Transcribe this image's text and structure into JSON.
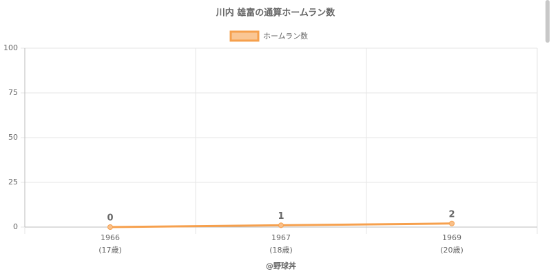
{
  "chart_data": {
    "type": "line",
    "title": "川内 雄富の通算ホームラン数",
    "categories": [
      "1966",
      "1967",
      "1969"
    ],
    "age_labels": [
      "(17歳)",
      "(18歳)",
      "(20歳)"
    ],
    "series": [
      {
        "name": "ホームラン数",
        "color": "#f6a04d",
        "values": [
          0,
          1,
          2
        ]
      }
    ],
    "ylim": [
      0,
      100
    ],
    "yticks": [
      0,
      25,
      50,
      75,
      100
    ],
    "grid": true,
    "credit": "@野球丼"
  }
}
